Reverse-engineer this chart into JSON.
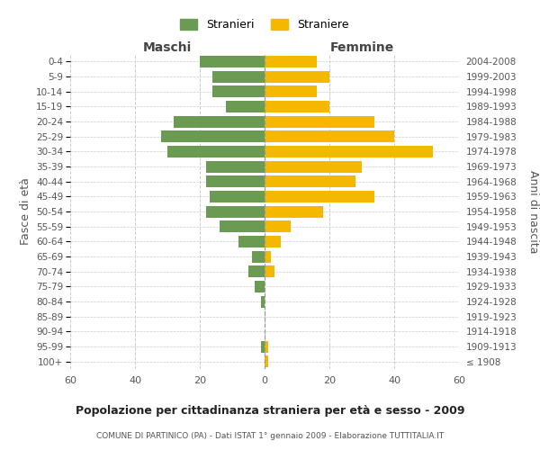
{
  "age_groups": [
    "0-4",
    "5-9",
    "10-14",
    "15-19",
    "20-24",
    "25-29",
    "30-34",
    "35-39",
    "40-44",
    "45-49",
    "50-54",
    "55-59",
    "60-64",
    "65-69",
    "70-74",
    "75-79",
    "80-84",
    "85-89",
    "90-94",
    "95-99",
    "100+"
  ],
  "birth_years": [
    "2004-2008",
    "1999-2003",
    "1994-1998",
    "1989-1993",
    "1984-1988",
    "1979-1983",
    "1974-1978",
    "1969-1973",
    "1964-1968",
    "1959-1963",
    "1954-1958",
    "1949-1953",
    "1944-1948",
    "1939-1943",
    "1934-1938",
    "1929-1933",
    "1924-1928",
    "1919-1923",
    "1914-1918",
    "1909-1913",
    "≤ 1908"
  ],
  "maschi": [
    20,
    16,
    16,
    12,
    28,
    32,
    30,
    18,
    18,
    17,
    18,
    14,
    8,
    4,
    5,
    3,
    1,
    0,
    0,
    1,
    0
  ],
  "femmine": [
    16,
    20,
    16,
    20,
    34,
    40,
    52,
    30,
    28,
    34,
    18,
    8,
    5,
    2,
    3,
    0,
    0,
    0,
    0,
    1,
    1
  ],
  "maschi_color": "#6b9a52",
  "femmine_color": "#f5b800",
  "background_color": "#ffffff",
  "grid_color": "#cccccc",
  "title": "Popolazione per cittadinanza straniera per età e sesso - 2009",
  "subtitle": "COMUNE DI PARTINICO (PA) - Dati ISTAT 1° gennaio 2009 - Elaborazione TUTTITALIA.IT",
  "ylabel_left": "Fasce di età",
  "ylabel_right": "Anni di nascita",
  "xlabel_left": "Maschi",
  "xlabel_right": "Femmine",
  "legend_stranieri": "Stranieri",
  "legend_straniere": "Straniere",
  "xlim": 60
}
